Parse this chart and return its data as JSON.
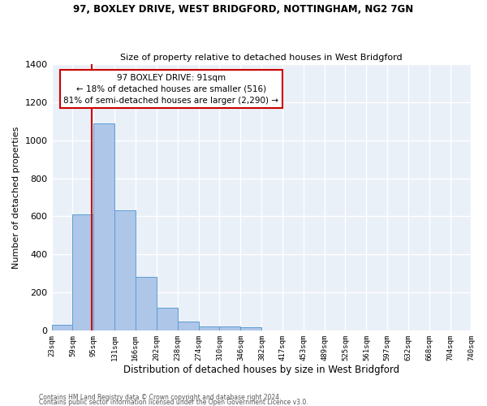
{
  "title_line1": "97, BOXLEY DRIVE, WEST BRIDGFORD, NOTTINGHAM, NG2 7GN",
  "title_line2": "Size of property relative to detached houses in West Bridgford",
  "xlabel": "Distribution of detached houses by size in West Bridgford",
  "ylabel": "Number of detached properties",
  "footnote1": "Contains HM Land Registry data © Crown copyright and database right 2024.",
  "footnote2": "Contains public sector information licensed under the Open Government Licence v3.0.",
  "bin_edges": [
    23,
    59,
    95,
    131,
    166,
    202,
    238,
    274,
    310,
    346,
    382,
    417,
    453,
    489,
    525,
    561,
    597,
    632,
    668,
    704,
    740
  ],
  "bar_heights": [
    30,
    610,
    1090,
    630,
    280,
    120,
    45,
    20,
    20,
    15,
    0,
    0,
    0,
    0,
    0,
    0,
    0,
    0,
    0,
    0
  ],
  "bar_color": "#aec6e8",
  "bar_edge_color": "#5a9fd4",
  "background_color": "#eaf0f8",
  "grid_color": "#ffffff",
  "property_size": 91,
  "vline_color": "#cc0000",
  "annotation_line1": "97 BOXLEY DRIVE: 91sqm",
  "annotation_line2": "← 18% of detached houses are smaller (516)",
  "annotation_line3": "81% of semi-detached houses are larger (2,290) →",
  "annotation_box_color": "#ffffff",
  "annotation_border_color": "#cc0000",
  "ylim": [
    0,
    1400
  ],
  "yticks": [
    0,
    200,
    400,
    600,
    800,
    1000,
    1200,
    1400
  ],
  "tick_labels": [
    "23sqm",
    "59sqm",
    "95sqm",
    "131sqm",
    "166sqm",
    "202sqm",
    "238sqm",
    "274sqm",
    "310sqm",
    "346sqm",
    "382sqm",
    "417sqm",
    "453sqm",
    "489sqm",
    "525sqm",
    "561sqm",
    "597sqm",
    "632sqm",
    "668sqm",
    "704sqm",
    "740sqm"
  ]
}
